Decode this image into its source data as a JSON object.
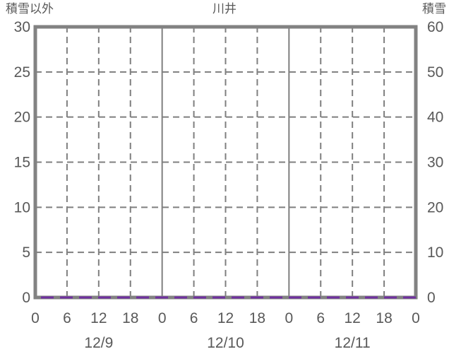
{
  "background": "#ffffff",
  "colors": {
    "frame": "#828282",
    "grid": "#7f7f7f",
    "text": "#595959",
    "series_purple": "#7030A0"
  },
  "chart_data": {
    "type": "line",
    "title": "川井",
    "left_axis": {
      "label": "積雪以外",
      "min": 0,
      "max": 30,
      "ticks": [
        0,
        5,
        10,
        15,
        20,
        25,
        30
      ]
    },
    "right_axis": {
      "label": "積雪",
      "min": 0,
      "max": 60,
      "ticks": [
        0,
        10,
        20,
        30,
        40,
        50,
        60
      ]
    },
    "x_axis": {
      "min": 0,
      "max": 72,
      "tick_interval_hours": 6,
      "hour_labels": [
        "0",
        "6",
        "12",
        "18",
        "0",
        "6",
        "12",
        "18",
        "0",
        "6",
        "12",
        "18",
        "0"
      ],
      "day_labels": [
        "12/9",
        "12/10",
        "12/11"
      ],
      "hours_per_day": 24,
      "day_boundaries_hours": [
        24,
        48
      ],
      "grid_style": "dashed"
    },
    "series": [
      {
        "name": "積雪",
        "axis": "right",
        "color": "#7030A0",
        "line_style": "dashed",
        "x": [
          0,
          72
        ],
        "values": [
          0,
          0
        ]
      }
    ],
    "legend": "none"
  }
}
